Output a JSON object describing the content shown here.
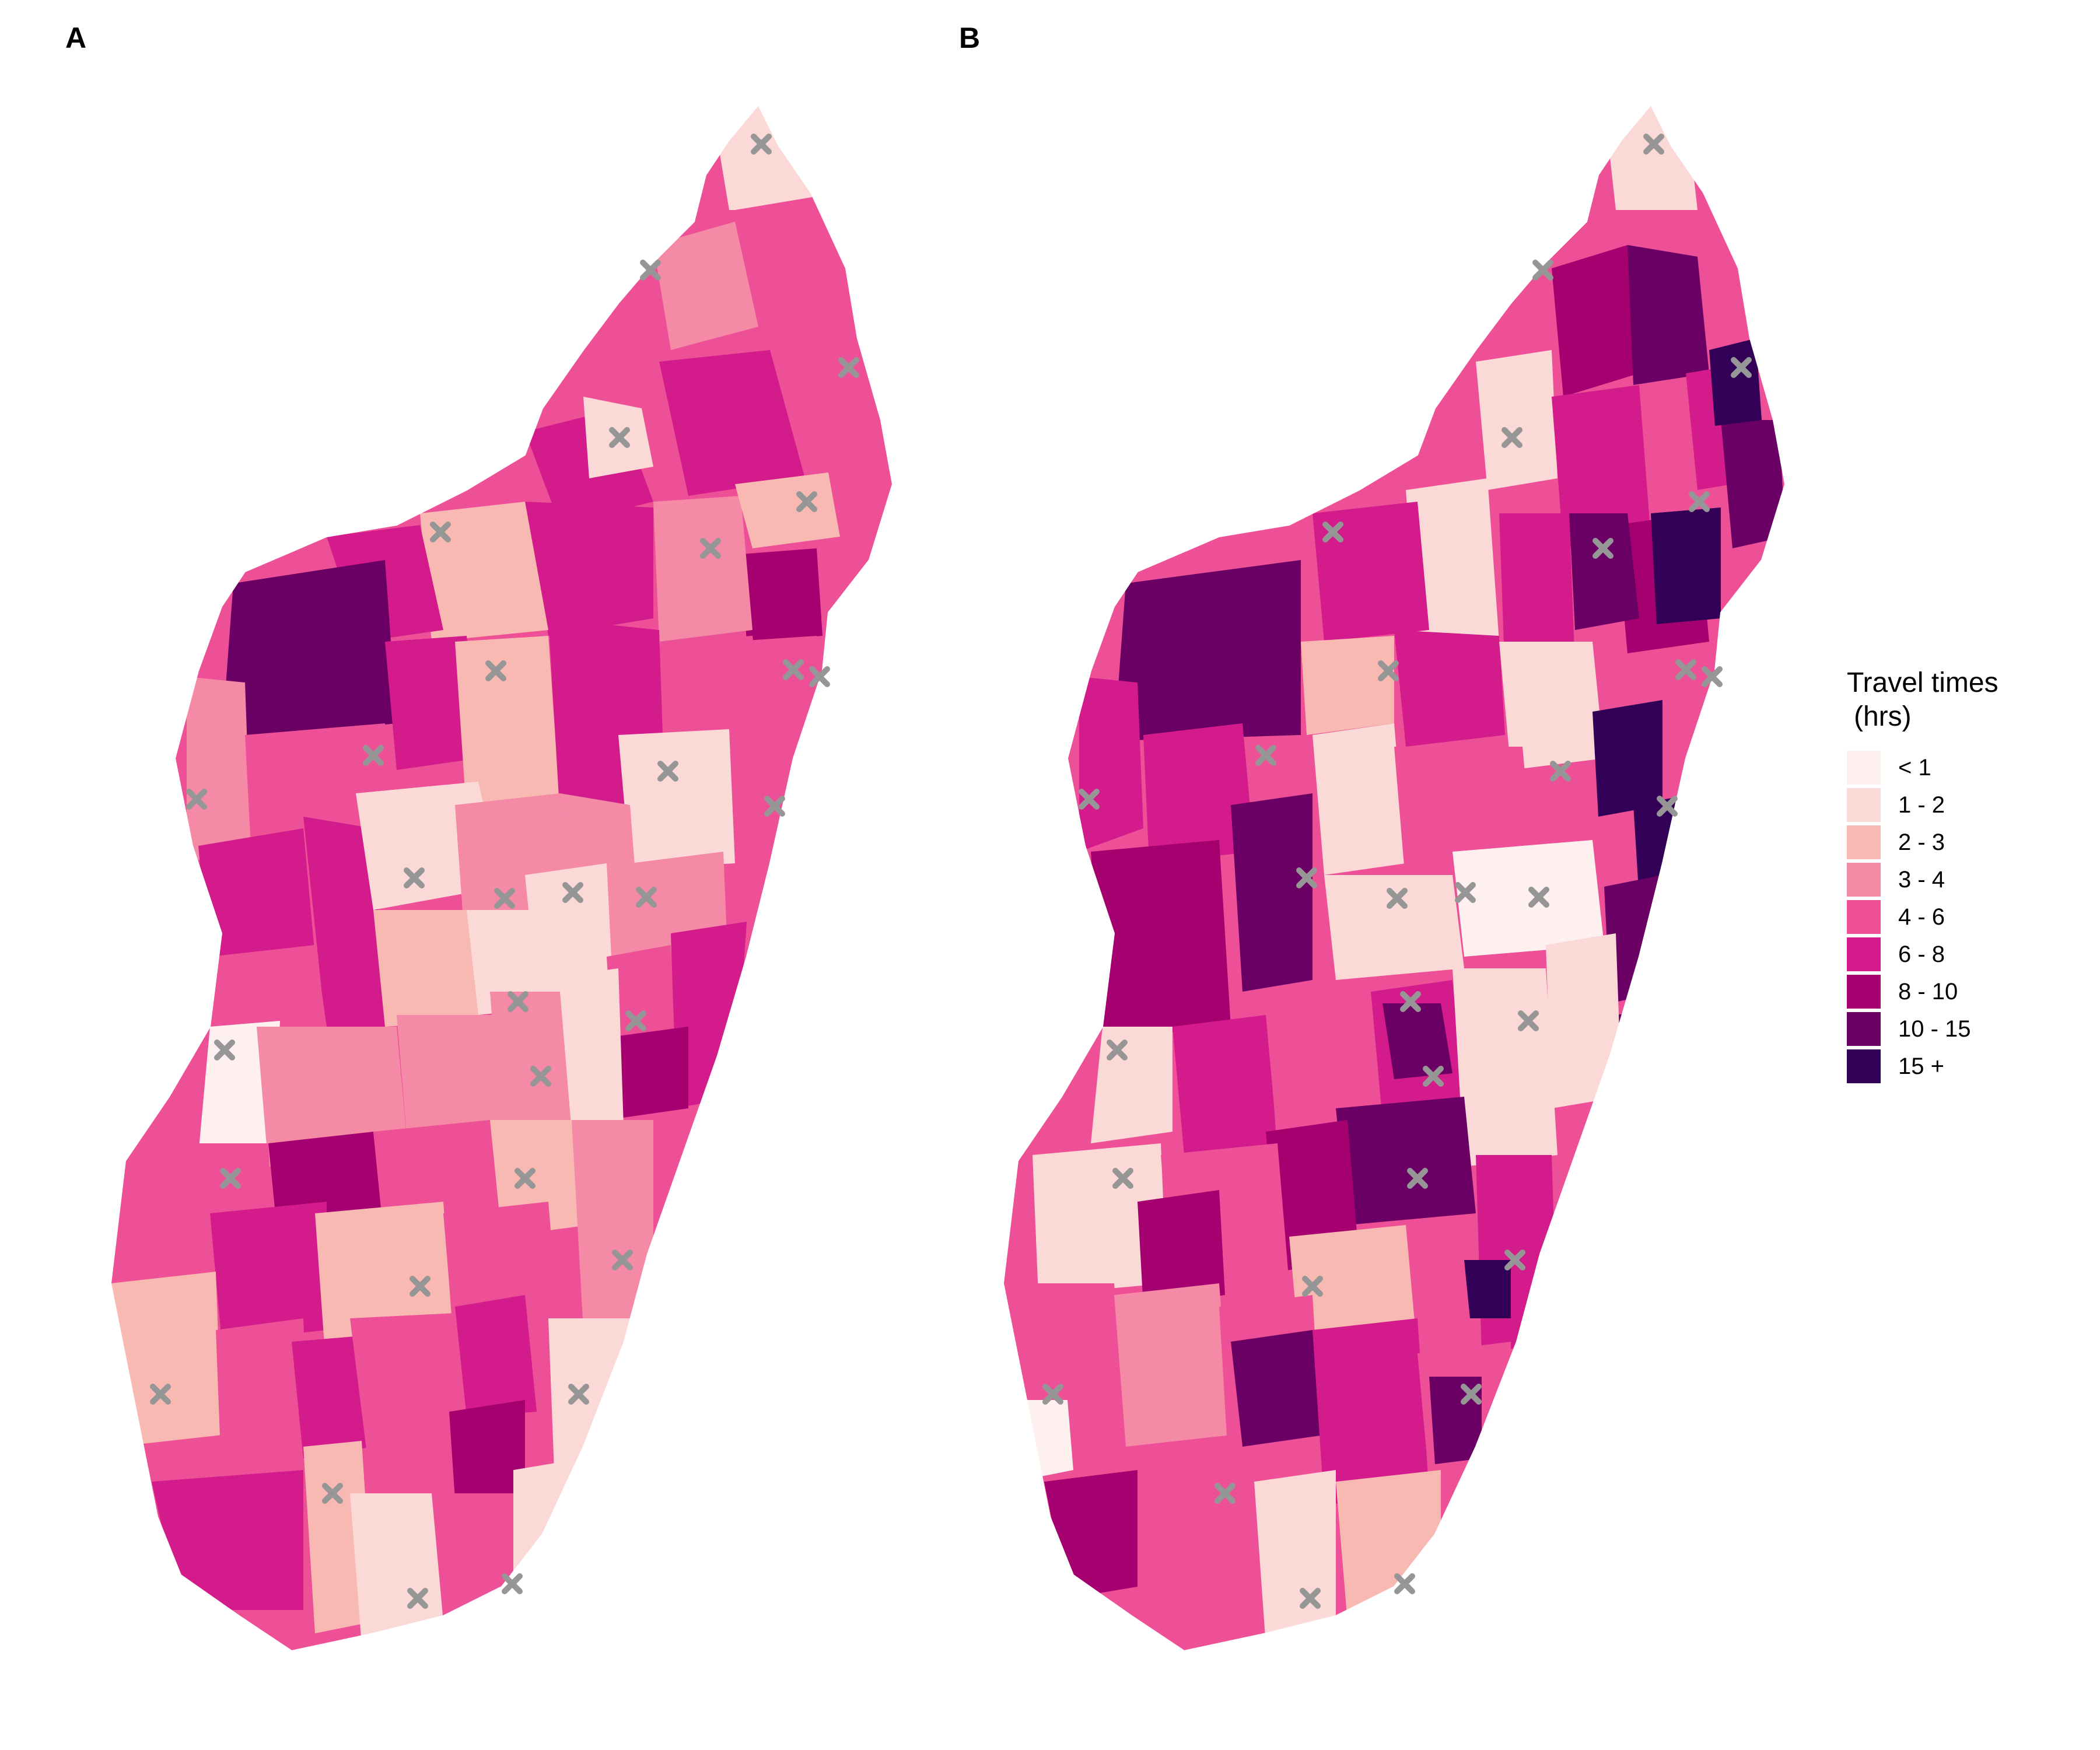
{
  "panels": [
    {
      "id": "A",
      "label": "A"
    },
    {
      "id": "B",
      "label": "B"
    }
  ],
  "legend": {
    "title_line1": "Travel times",
    "title_line2": "(hrs)",
    "items": [
      {
        "label": "< 1",
        "color": "#fdf0ef"
      },
      {
        "label": "1 - 2",
        "color": "#fad9d6"
      },
      {
        "label": "2 - 3",
        "color": "#f8b9b3"
      },
      {
        "label": "3 - 4",
        "color": "#f48aa6"
      },
      {
        "label": "4 - 6",
        "color": "#ee5097"
      },
      {
        "label": "6 - 8",
        "color": "#d41b8c"
      },
      {
        "label": "8 - 10",
        "color": "#a4006f"
      },
      {
        "label": "10 - 15",
        "color": "#6b0064"
      },
      {
        "label": "15 +",
        "color": "#320057"
      }
    ]
  },
  "marker": {
    "symbol": "x",
    "color": "#969696",
    "meaning": "clinic / health facility"
  }
}
